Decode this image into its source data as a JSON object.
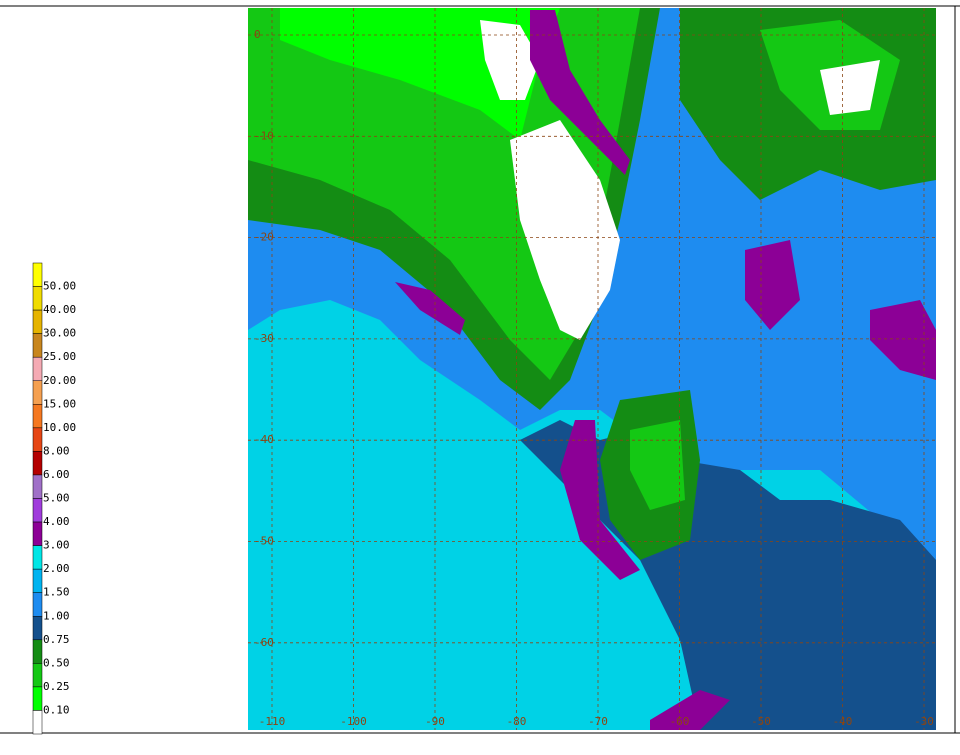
{
  "legend": {
    "labels": [
      "50.00",
      "40.00",
      "30.00",
      "25.00",
      "20.00",
      "15.00",
      "10.00",
      "8.00",
      "6.00",
      "5.00",
      "4.00",
      "3.00",
      "2.00",
      "1.50",
      "1.00",
      "0.75",
      "0.50",
      "0.25",
      "0.10"
    ],
    "colors": [
      "#ffff00",
      "#f0dc00",
      "#e6b400",
      "#c8861e",
      "#f5aab4",
      "#f5a050",
      "#f57820",
      "#e64614",
      "#b40000",
      "#a070c8",
      "#a03cdc",
      "#8c0096",
      "#00e6e6",
      "#00b4f0",
      "#1e8cf0",
      "#14508c",
      "#148c14",
      "#14c814",
      "#00ff00",
      "#ffffff"
    ]
  },
  "map": {
    "lat_labels": [
      "0",
      "-10",
      "-20",
      "-30",
      "-40",
      "-50",
      "-60"
    ],
    "lon_labels": [
      "-110",
      "-100",
      "-90",
      "-80",
      "-70",
      "-60",
      "-50",
      "-40",
      "-30"
    ]
  }
}
